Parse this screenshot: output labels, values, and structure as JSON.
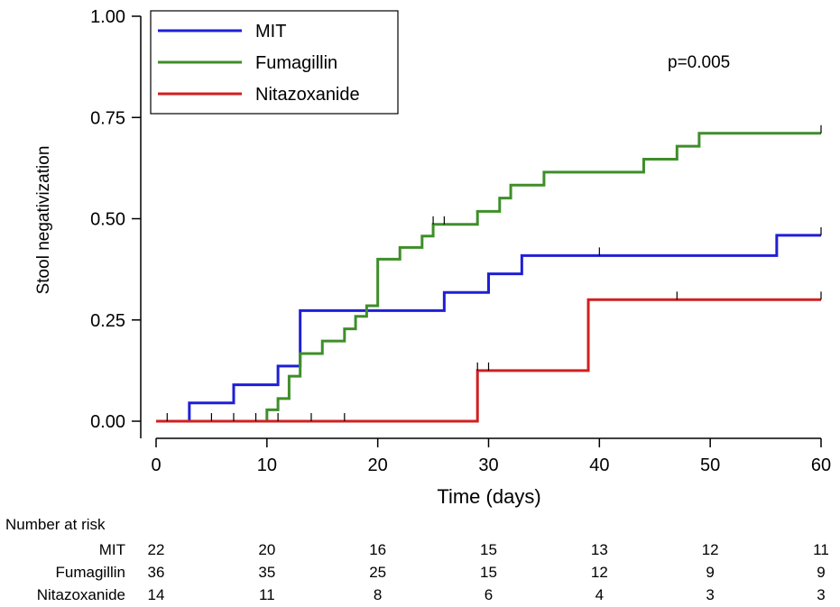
{
  "chart_data": {
    "type": "line",
    "subtype": "kaplan-meier step",
    "title": "",
    "xlabel": "Time (days)",
    "ylabel": "Stool negativization",
    "xlim": [
      0,
      60
    ],
    "ylim": [
      0,
      1
    ],
    "xticks": [
      0,
      10,
      20,
      30,
      40,
      50,
      60
    ],
    "xtick_labels": [
      "0",
      "10",
      "20",
      "30",
      "40",
      "50",
      "60"
    ],
    "yticks": [
      0,
      0.25,
      0.5,
      0.75,
      1
    ],
    "ytick_labels": [
      "0.00",
      "0.25",
      "0.50",
      "0.75",
      "1.00"
    ],
    "annotation": "p=0.005",
    "legend_position": "top-left",
    "series": [
      {
        "name": "MIT",
        "color": "#1f1fd6",
        "x": [
          0,
          3,
          7,
          11,
          13,
          26,
          30,
          33,
          56,
          60
        ],
        "y": [
          0,
          0.045,
          0.09,
          0.136,
          0.273,
          0.318,
          0.364,
          0.409,
          0.459,
          0.459
        ],
        "censored": [
          40,
          60
        ]
      },
      {
        "name": "Fumagillin",
        "color": "#3e8e2a",
        "x": [
          0,
          10,
          11,
          12,
          13,
          15,
          17,
          18,
          19,
          20,
          22,
          24,
          25,
          29,
          31,
          32,
          35,
          44,
          47,
          49,
          60
        ],
        "y": [
          0,
          0.028,
          0.056,
          0.111,
          0.167,
          0.198,
          0.228,
          0.259,
          0.285,
          0.4,
          0.429,
          0.457,
          0.486,
          0.518,
          0.551,
          0.583,
          0.615,
          0.647,
          0.679,
          0.711,
          0.711
        ],
        "censored": [
          25,
          26,
          60
        ]
      },
      {
        "name": "Nitazoxanide",
        "color": "#d11f1f",
        "x": [
          0,
          29,
          39,
          60
        ],
        "y": [
          0,
          0.125,
          0.3,
          0.3
        ],
        "censored": [
          1,
          5,
          7,
          9,
          11,
          14,
          17,
          29,
          30,
          47,
          60
        ]
      }
    ]
  },
  "risk_table": {
    "title": "Number at risk",
    "times": [
      0,
      10,
      20,
      30,
      40,
      50,
      60
    ],
    "rows": [
      {
        "label": "MIT",
        "values": [
          "22",
          "20",
          "16",
          "15",
          "13",
          "12",
          "11"
        ]
      },
      {
        "label": "Fumagillin",
        "values": [
          "36",
          "35",
          "25",
          "15",
          "12",
          "9",
          "9"
        ]
      },
      {
        "label": "Nitazoxanide",
        "values": [
          "14",
          "11",
          "8",
          "6",
          "4",
          "3",
          "3"
        ]
      }
    ]
  }
}
